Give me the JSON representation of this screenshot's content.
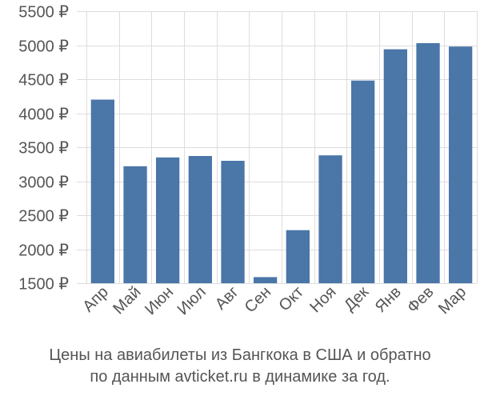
{
  "chart_data": {
    "type": "bar",
    "currency": "₽",
    "categories": [
      "Апр",
      "Май",
      "Июн",
      "Июл",
      "Авг",
      "Сен",
      "Окт",
      "Ноя",
      "Дек",
      "Янв",
      "Фев",
      "Мар"
    ],
    "values": [
      4200,
      3220,
      3350,
      3370,
      3300,
      1590,
      2280,
      3380,
      4480,
      4940,
      5030,
      4980
    ],
    "ylim": [
      1500,
      5500
    ],
    "yticks": [
      1500,
      2000,
      2500,
      3000,
      3500,
      4000,
      4500,
      5000,
      5500
    ],
    "grid": true,
    "bar_color": "#4a76a8",
    "caption_line1": "Цены на авиабилеты из Бангкока в США и обратно",
    "caption_line2": "по данным avticket.ru в динамике за год."
  }
}
